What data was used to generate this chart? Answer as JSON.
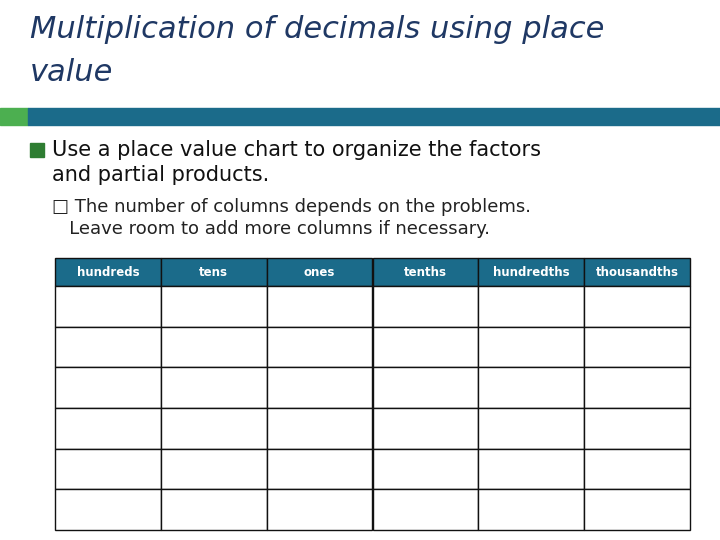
{
  "title_line1": "Multiplication of decimals using place",
  "title_line2": "value",
  "title_color": "#1F3864",
  "title_fontsize": 22,
  "accent_bar_color_green": "#4CAF50",
  "accent_bar_color_teal": "#1B6B8A",
  "bullet_text_1a": "Use a place value chart to organize the factors",
  "bullet_text_1b": "and partial products.",
  "bullet_text_2a": "□ The number of columns depends on the problems.",
  "bullet_text_2b": "   Leave room to add more columns if necessary.",
  "bullet1_square_color": "#2E7D32",
  "table_headers": [
    "hundreds",
    "tens",
    "ones",
    "tenths",
    "hundredths",
    "thousandths"
  ],
  "table_header_bg": "#1B6B8A",
  "table_header_color": "#FFFFFF",
  "table_rows": 6,
  "table_row_color": "#FFFFFF",
  "table_border_color": "#111111",
  "background_color": "#FFFFFF",
  "fig_width": 7.2,
  "fig_height": 5.4,
  "dpi": 100
}
